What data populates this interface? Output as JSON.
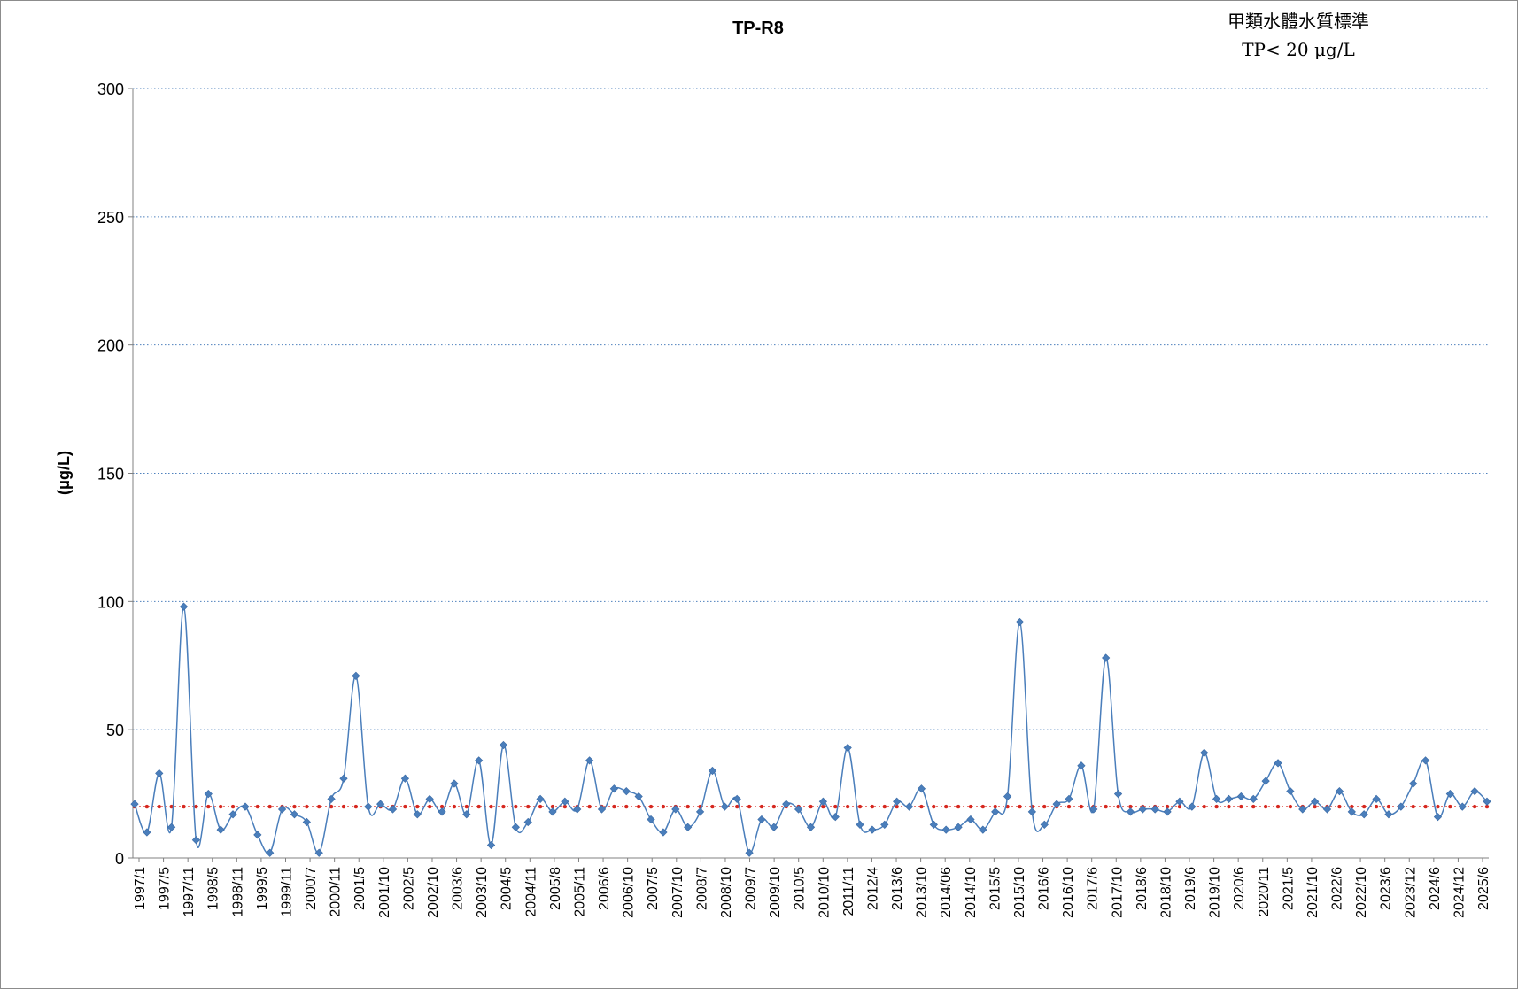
{
  "chart_data": {
    "type": "line",
    "title": "TP-R8",
    "standard_note": {
      "line1": "甲類水體水質標準",
      "line2": "TP< 20 μg/L"
    },
    "ylabel": "(μg/L)",
    "xlabel": "",
    "ylim": [
      0,
      300
    ],
    "yticks": [
      0,
      50,
      100,
      150,
      200,
      250,
      300
    ],
    "grid": "horizontal-dotted",
    "x_tick_labels": [
      "1997/1",
      "1997/5",
      "1997/11",
      "1998/5",
      "1998/11",
      "1999/5",
      "1999/11",
      "2000/7",
      "2000/11",
      "2001/5",
      "2001/10",
      "2002/5",
      "2002/10",
      "2003/6",
      "2003/10",
      "2004/5",
      "2004/11",
      "2005/8",
      "2005/11",
      "2006/6",
      "2006/10",
      "2007/5",
      "2007/10",
      "2008/7",
      "2008/10",
      "2009/7",
      "2009/10",
      "2010/5",
      "2010/10",
      "2011/11",
      "2012/4",
      "2013/6",
      "2013/10",
      "2014/06",
      "2014/10",
      "2015/5",
      "2015/10",
      "2016/6",
      "2016/10",
      "2017/6",
      "2017/10",
      "2018/6",
      "2018/10",
      "2019/6",
      "2019/10",
      "2020/6",
      "2020/11",
      "2021/5",
      "2021/10",
      "2022/6",
      "2022/10",
      "2023/6",
      "2023/12",
      "2024/6",
      "2024/12",
      "2025/6"
    ],
    "series": [
      {
        "color": "#4a7ebb",
        "marker": "diamond",
        "smooth": true,
        "values": [
          21,
          10,
          33,
          12,
          98,
          7,
          25,
          11,
          17,
          20,
          9,
          2,
          19,
          17,
          14,
          2,
          23,
          31,
          71,
          20,
          21,
          19,
          31,
          17,
          23,
          18,
          29,
          17,
          38,
          5,
          44,
          12,
          14,
          23,
          18,
          22,
          19,
          38,
          19,
          27,
          26,
          24,
          15,
          10,
          19,
          12,
          18,
          34,
          20,
          23,
          2,
          15,
          12,
          21,
          19,
          12,
          22,
          16,
          43,
          13,
          11,
          13,
          22,
          20,
          27,
          13,
          11,
          12,
          15,
          11,
          18,
          24,
          92,
          18,
          13,
          21,
          23,
          36,
          19,
          78,
          25,
          18,
          19,
          19,
          18,
          22,
          20,
          41,
          23,
          23,
          24,
          23,
          30,
          37,
          26,
          19,
          22,
          19,
          26,
          18,
          17,
          23,
          17,
          20,
          29,
          38,
          16,
          25,
          20,
          26,
          22
        ]
      },
      {
        "color": "#d6281f",
        "marker": "circle-small",
        "dotted": true,
        "constant": 20
      }
    ]
  }
}
